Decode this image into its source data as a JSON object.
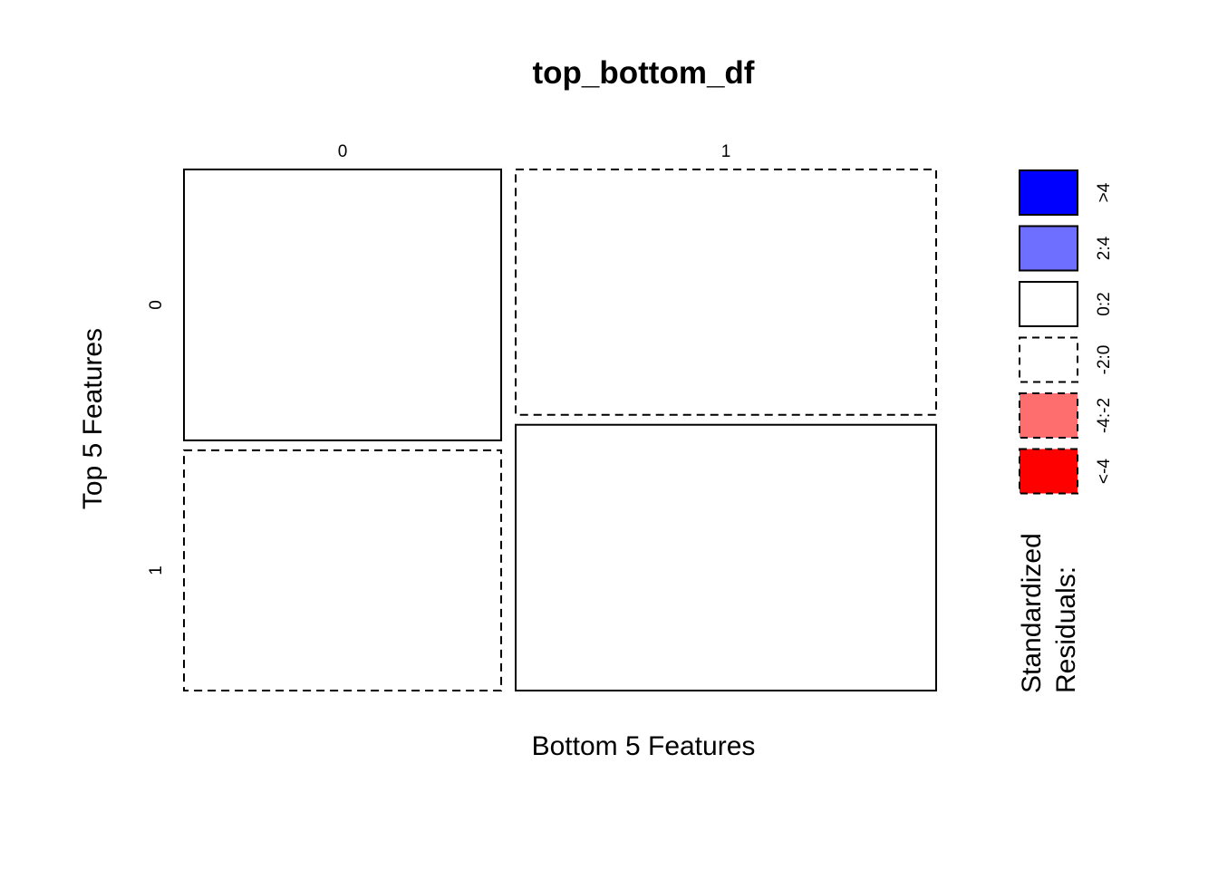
{
  "chart_data": {
    "type": "mosaic",
    "title": "top_bottom_df",
    "xlabel": "Bottom 5 Features",
    "ylabel": "Top 5 Features",
    "x_categories": [
      "0",
      "1"
    ],
    "y_categories": [
      "0",
      "1"
    ],
    "x_proportions": [
      0.43,
      0.57
    ],
    "y_proportions": {
      "0": [
        0.53,
        0.47
      ],
      "1": [
        0.48,
        0.52
      ]
    },
    "cells": [
      {
        "x": "0",
        "y": "0",
        "residual_sign": "positive",
        "shading": "0:2"
      },
      {
        "x": "0",
        "y": "1",
        "residual_sign": "negative",
        "shading": "-2:0"
      },
      {
        "x": "1",
        "y": "0",
        "residual_sign": "negative",
        "shading": "-2:0"
      },
      {
        "x": "1",
        "y": "1",
        "residual_sign": "positive",
        "shading": "0:2"
      }
    ],
    "legend": {
      "title_line1": "Standardized",
      "title_line2": "Residuals:",
      "items": [
        {
          "label": ">4",
          "color": "#0000ff",
          "dashed": false
        },
        {
          "label": "2:4",
          "color": "#6e6eff",
          "dashed": false
        },
        {
          "label": "0:2",
          "color": "#ffffff",
          "dashed": false
        },
        {
          "label": "-2:0",
          "color": "#ffffff",
          "dashed": true
        },
        {
          "label": "-4:-2",
          "color": "#ff6e6e",
          "dashed": true
        },
        {
          "label": "<-4",
          "color": "#ff0000",
          "dashed": true
        }
      ]
    }
  }
}
